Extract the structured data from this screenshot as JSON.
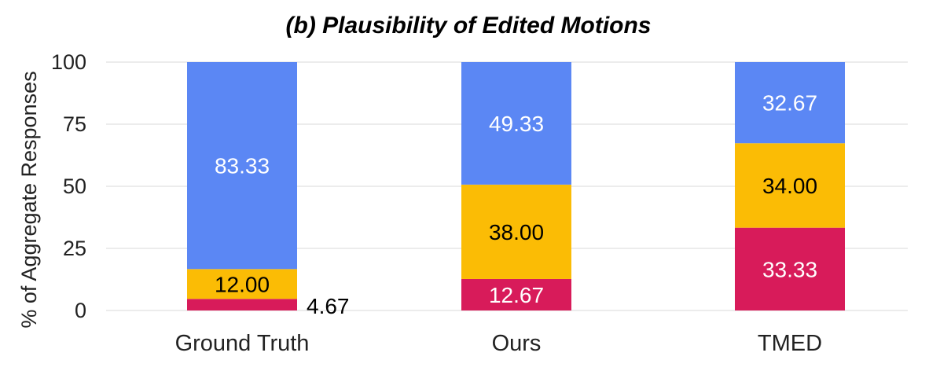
{
  "chart_data": {
    "type": "bar",
    "stacked": true,
    "title": "(b) Plausibility of Edited Motions",
    "ylabel": "% of Aggregate Responses",
    "xlabel": "",
    "ylim": [
      0,
      100
    ],
    "yticks": [
      0,
      25,
      50,
      75,
      100
    ],
    "grid": true,
    "categories": [
      "Ground Truth",
      "Ours",
      "TMED"
    ],
    "series": [
      {
        "color": "#d81b5a",
        "label_color": "#ffffff",
        "values": [
          4.67,
          12.67,
          33.33
        ],
        "labels": [
          "4.67",
          "12.67",
          "33.33"
        ]
      },
      {
        "color": "#fbbc05",
        "label_color": "#000000",
        "values": [
          12.0,
          38.0,
          34.0
        ],
        "labels": [
          "12.00",
          "38.00",
          "34.00"
        ]
      },
      {
        "color": "#5b87f4",
        "label_color": "#ffffff",
        "values": [
          83.33,
          49.33,
          32.67
        ],
        "labels": [
          "83.33",
          "49.33",
          "32.67"
        ]
      }
    ]
  }
}
